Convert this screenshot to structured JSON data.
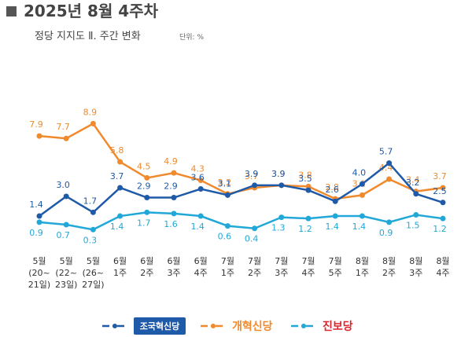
{
  "chart_data": {
    "type": "line",
    "title": "2025년 8월 4주차",
    "subtitle": "정당 지지도 Ⅱ. 주간 변화",
    "unit": "단위: %",
    "categories": [
      "5월\n(20~\n21일)",
      "5월\n(22~\n23일)",
      "5월\n(26~\n27일)",
      "6월\n1주",
      "6월\n2주",
      "6월\n3주",
      "6월\n4주",
      "7월\n1주",
      "7월\n2주",
      "7월\n3주",
      "7월\n4주",
      "7월\n5주",
      "8월\n1주",
      "8월\n2주",
      "8월\n3주",
      "8월\n4주"
    ],
    "ylim": [
      0,
      9.5
    ],
    "series": [
      {
        "name": "개혁신당",
        "color": "#f08a2c",
        "values": [
          7.9,
          7.7,
          8.9,
          5.8,
          4.5,
          4.9,
          4.3,
          3.2,
          3.7,
          3.9,
          3.8,
          2.8,
          3.1,
          4.4,
          3.4,
          3.7
        ],
        "value_labels": [
          "7.9",
          "7.7",
          "8.9",
          "5.8",
          "4.5",
          "4.9",
          "4.3",
          "3.2",
          "3.7",
          "3.9",
          "3.8",
          "2.8",
          "3.1",
          "4.4",
          "3.4",
          "3.7"
        ]
      },
      {
        "name": "조국혁신당",
        "color": "#1f5aa8",
        "values": [
          1.4,
          3.0,
          1.7,
          3.7,
          2.9,
          2.9,
          3.6,
          3.1,
          3.9,
          3.9,
          3.5,
          2.6,
          4.0,
          5.7,
          3.2,
          2.5
        ],
        "value_labels": [
          "1.4",
          "3.0",
          "1.7",
          "3.7",
          "2.9",
          "2.9",
          "3.6",
          "3.1",
          "3.9",
          "3.9",
          "3.5",
          "2.6",
          "4.0",
          "5.7",
          "3.2",
          "2.5"
        ]
      },
      {
        "name": "진보당",
        "color": "#22a8d8",
        "values": [
          0.9,
          0.7,
          0.3,
          1.4,
          1.7,
          1.6,
          1.4,
          0.6,
          0.4,
          1.3,
          1.2,
          1.4,
          1.4,
          0.9,
          1.5,
          1.2
        ],
        "value_labels": [
          "0.9",
          "0.7",
          "0.3",
          "1.4",
          "1.7",
          "1.6",
          "1.4",
          "0.6",
          "0.4",
          "1.3",
          "1.2",
          "1.4",
          "1.4",
          "0.9",
          "1.5",
          "1.2"
        ]
      }
    ]
  }
}
